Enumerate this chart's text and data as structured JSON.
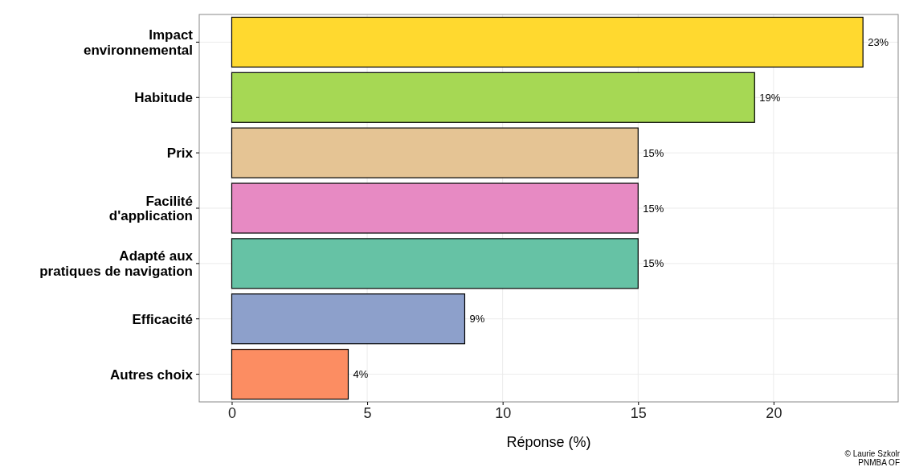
{
  "chart_data": {
    "type": "bar",
    "orientation": "horizontal",
    "categories": [
      "Impact\nenvironnemental",
      "Habitude",
      "Prix",
      "Facilité\nd'application",
      "Adapté aux\npratiques de navigation",
      "Efficacité",
      "Autres choix"
    ],
    "values": [
      23.3,
      19.3,
      15.0,
      15.0,
      15.0,
      8.6,
      4.3
    ],
    "colors": [
      "#ffd92f",
      "#a6d854",
      "#e5c494",
      "#e78ac3",
      "#66c2a5",
      "#8da0cb",
      "#fc8d62"
    ],
    "value_labels": [
      "23%",
      "19%",
      "15%",
      "15%",
      "15%",
      "9%",
      "4%"
    ],
    "xlim": [
      -1.2,
      24.6
    ],
    "xticks": [
      0,
      5,
      10,
      15,
      20
    ],
    "xlabel": "Réponse (%)",
    "grid": true,
    "annotations": [
      "© Laurie Szkolr",
      "PNMBA OF"
    ]
  }
}
